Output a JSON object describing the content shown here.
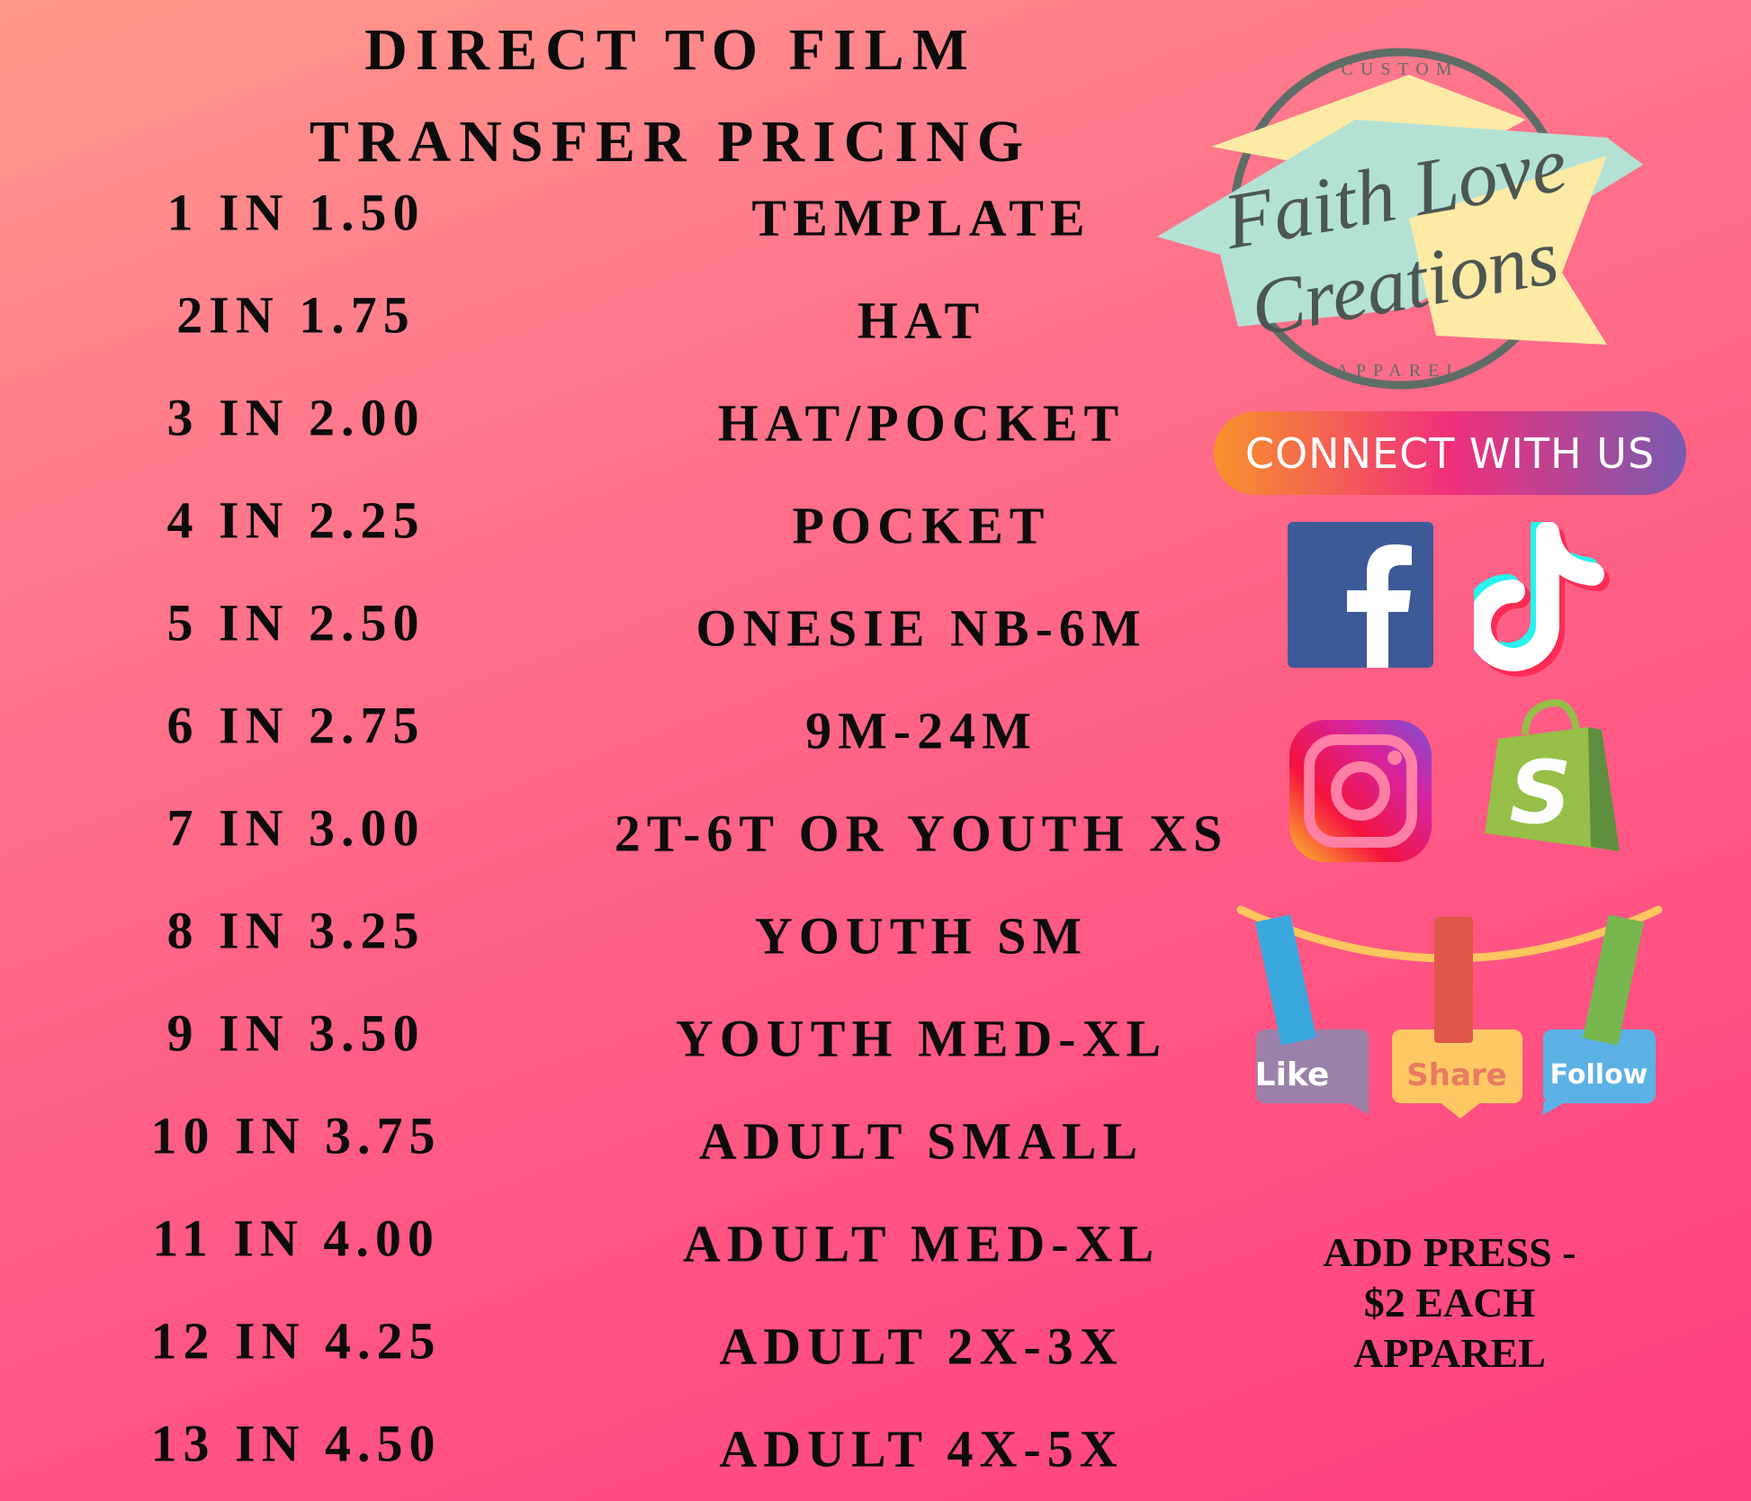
{
  "title": {
    "line1": "DIRECT TO FILM",
    "line2": "TRANSFER PRICING"
  },
  "rows": [
    {
      "size": "1 IN 1.50",
      "use": "TEMPLATE"
    },
    {
      "size": "2IN 1.75",
      "use": "HAT"
    },
    {
      "size": "3 IN 2.00",
      "use": "HAT/POCKET"
    },
    {
      "size": "4 IN 2.25",
      "use": "POCKET"
    },
    {
      "size": "5 IN 2.50",
      "use": "ONESIE NB-6M"
    },
    {
      "size": "6 IN 2.75",
      "use": "9M-24M"
    },
    {
      "size": "7 IN 3.00",
      "use": "2T-6T OR YOUTH XS"
    },
    {
      "size": "8 IN 3.25",
      "use": "YOUTH SM"
    },
    {
      "size": "9 IN 3.50",
      "use": "YOUTH MED-XL"
    },
    {
      "size": "10 IN 3.75",
      "use": "ADULT SMALL"
    },
    {
      "size": "11 IN 4.00",
      "use": "ADULT MED-XL"
    },
    {
      "size": "12 IN 4.25",
      "use": "ADULT 2X-3X"
    },
    {
      "size": "13 IN 4.50",
      "use": "ADULT 4X-5X"
    }
  ],
  "logo": {
    "top": "CUSTOM",
    "line1": "Faith Love",
    "line2": "Creations",
    "bottom": "APPAREL"
  },
  "connect": "CONNECT WITH US",
  "social_icons": [
    "facebook-icon",
    "tiktok-icon",
    "instagram-icon",
    "shopify-icon"
  ],
  "tags": {
    "like": "Like",
    "share": "Share",
    "follow": "Follow"
  },
  "press": {
    "line1": "ADD PRESS -",
    "line2": "$2 EACH",
    "line3": "APPAREL"
  },
  "colors": {
    "bg_top": "#ff9a8a",
    "bg_bottom": "#ff3f80",
    "text": "#0c0c0c"
  }
}
